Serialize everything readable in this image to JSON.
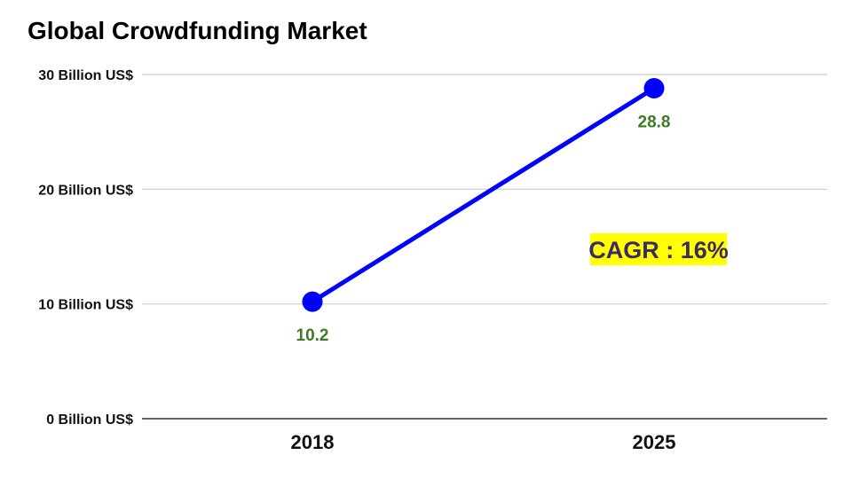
{
  "chart_data": {
    "type": "line",
    "title": "Global Crowdfunding Market",
    "categories": [
      "2018",
      "2025"
    ],
    "series": [
      {
        "values": [
          10.2,
          28.8
        ],
        "data_labels": [
          "10.2",
          "28.8"
        ]
      }
    ],
    "ylim": [
      0,
      30
    ],
    "yticks": [
      0,
      10,
      20,
      30
    ],
    "ytick_labels": [
      "0 Billion US$",
      "10 Billion US$",
      "20 Billion US$",
      "30 Billion US$"
    ],
    "xlabel": "",
    "ylabel": "",
    "grid": true,
    "legend": "none",
    "annotation": "CAGR : 16%",
    "colors": {
      "line": "#0000ff",
      "data_label": "#3d7a24",
      "grid": "#cccccc",
      "axis": "#333333",
      "annotation_bg": "#ffff00",
      "annotation_text": "#3a2a66"
    }
  }
}
